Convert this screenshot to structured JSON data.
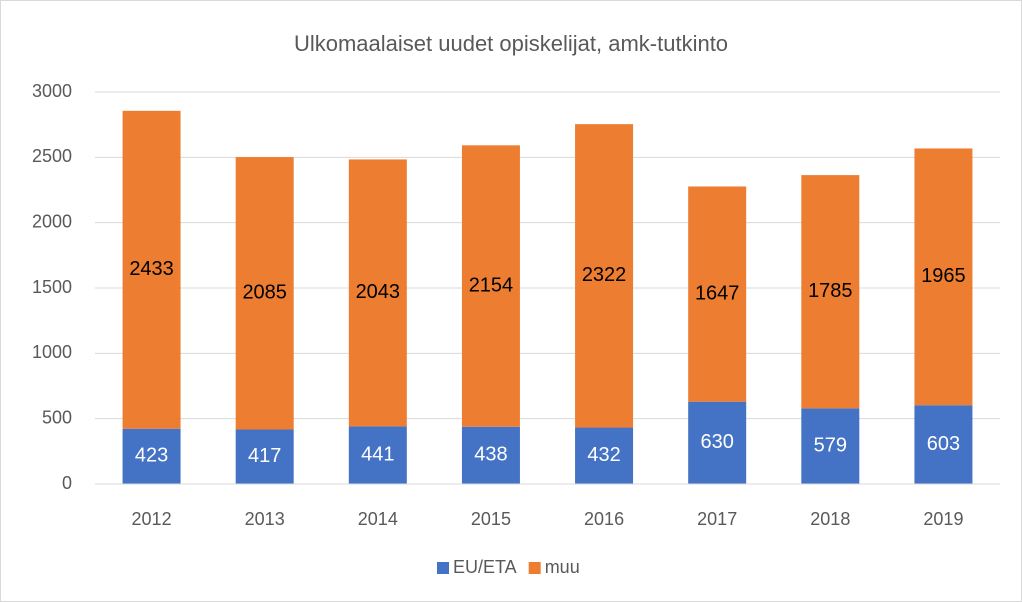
{
  "chart_data": {
    "type": "bar",
    "stacked": true,
    "title": "Ulkomaalaiset uudet opiskelijat, amk-tutkinto",
    "categories": [
      "2012",
      "2013",
      "2014",
      "2015",
      "2016",
      "2017",
      "2018",
      "2019"
    ],
    "series": [
      {
        "name": "EU/ETA",
        "color": "#4472c4",
        "label_color": "#ffffff",
        "values": [
          423,
          417,
          441,
          438,
          432,
          630,
          579,
          603
        ]
      },
      {
        "name": "muu",
        "color": "#ed7d31",
        "label_color": "#000000",
        "values": [
          2433,
          2085,
          2043,
          2154,
          2322,
          1647,
          1785,
          1965
        ]
      }
    ],
    "ylim": [
      0,
      3000
    ],
    "yticks": [
      0,
      500,
      1000,
      1500,
      2000,
      2500,
      3000
    ],
    "grid": true,
    "legend": "bottom"
  }
}
